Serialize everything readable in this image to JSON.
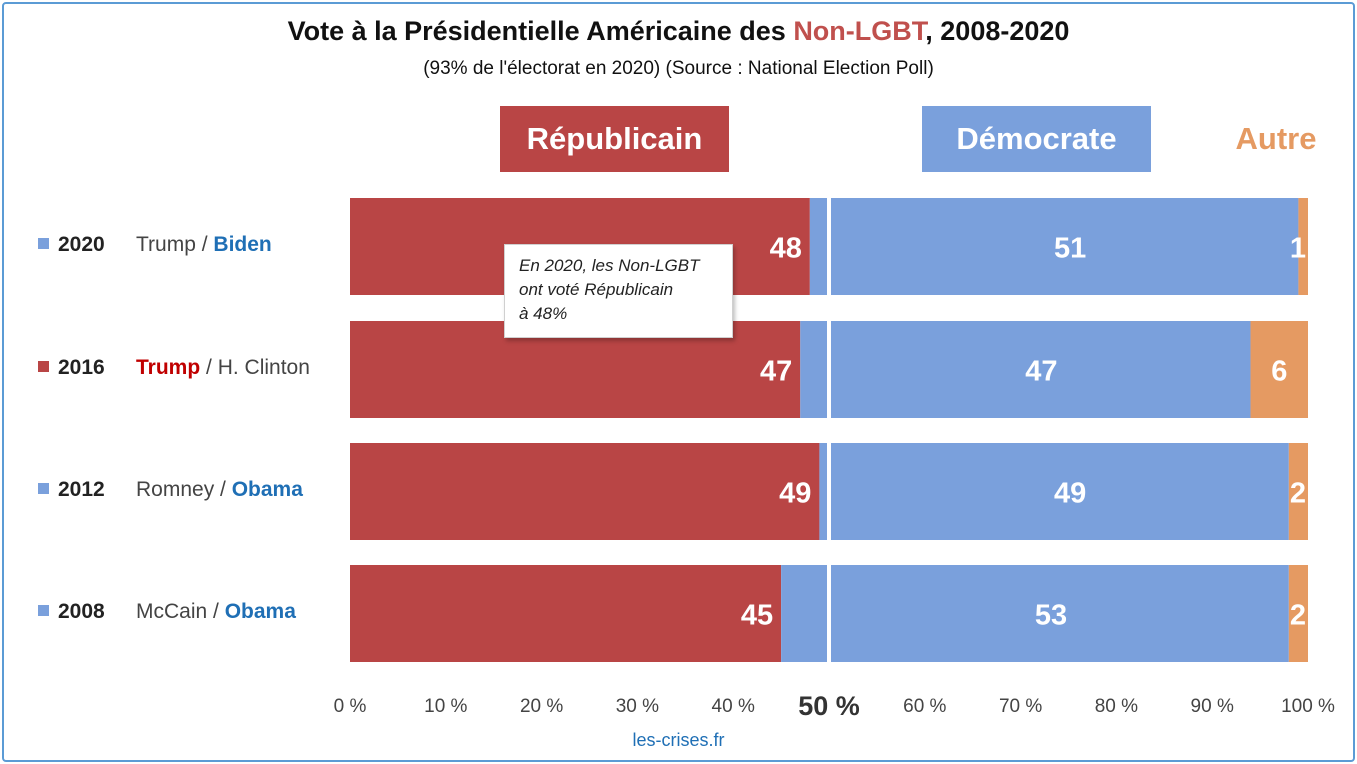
{
  "chart_data": {
    "type": "bar",
    "orientation": "horizontal",
    "stacked": true,
    "title": {
      "prefix": "Vote à la Présidentielle Américaine des ",
      "highlight": "Non-LGBT",
      "suffix": ", 2008-2020"
    },
    "subtitle": "(93% de l'électorat en 2020) (Source : National Election Poll)",
    "categories": [
      "2020",
      "2016",
      "2012",
      "2008"
    ],
    "series": [
      {
        "name": "Républicain",
        "color": "#b94545",
        "values": [
          48,
          47,
          49,
          45
        ]
      },
      {
        "name": "Démocrate",
        "color": "#7aa0dc",
        "values": [
          51,
          47,
          49,
          53
        ]
      },
      {
        "name": "Autre",
        "color": "#e59a62",
        "values": [
          1,
          6,
          2,
          2
        ]
      }
    ],
    "xlim": [
      0,
      100
    ],
    "x_ticks": [
      "0 %",
      "10 %",
      "20 %",
      "30 %",
      "40 %",
      "50 %",
      "60 %",
      "70 %",
      "80 %",
      "90 %",
      "100 %"
    ],
    "midline_value": 50,
    "grid": false
  },
  "rows": [
    {
      "year": "2020",
      "marker_color": "#7aa0dc",
      "rep": "Trump",
      "dem": "Biden",
      "winner": "dem"
    },
    {
      "year": "2016",
      "marker_color": "#b94545",
      "rep": "Trump",
      "dem": "H. Clinton",
      "winner": "rep"
    },
    {
      "year": "2012",
      "marker_color": "#7aa0dc",
      "rep": "Romney",
      "dem": "Obama",
      "winner": "dem"
    },
    {
      "year": "2008",
      "marker_color": "#7aa0dc",
      "rep": "McCain",
      "dem": "Obama",
      "winner": "dem"
    }
  ],
  "separator": " / ",
  "winner_colors": {
    "rep": "#c00000",
    "dem": "#1f6fb5"
  },
  "callout": {
    "lines": [
      "En 2020, les Non-LGBT",
      "ont voté Républicain",
      "à 48%"
    ]
  },
  "source_link": "les-crises.fr"
}
